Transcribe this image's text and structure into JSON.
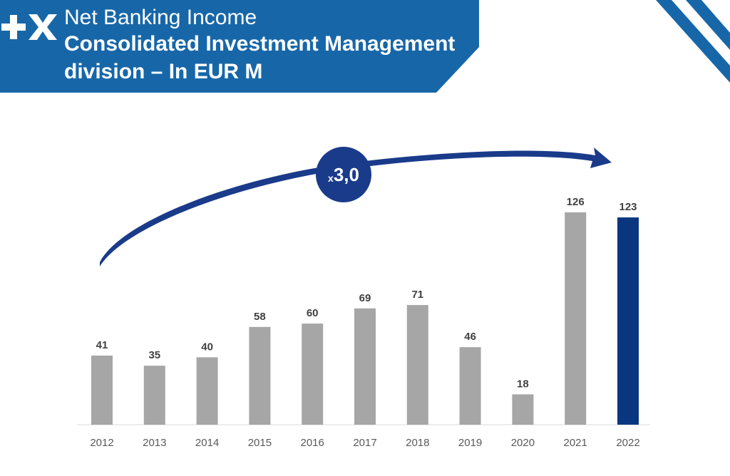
{
  "header": {
    "logo_icon": "plus-x-logo-icon",
    "title_line1": "Net Banking Income",
    "title_line2": "Consolidated Investment Management",
    "title_line3": "division – In EUR M"
  },
  "annotation": {
    "prefix": "x",
    "value": "3,0",
    "arrow_icon": "curved-arrow-icon"
  },
  "colors": {
    "banner": "#1767a8",
    "bar_default": "#a6a6a6",
    "bar_highlight": "#0a3680",
    "badge": "#1a3b8a"
  },
  "chart_data": {
    "type": "bar",
    "categories": [
      "2012",
      "2013",
      "2014",
      "2015",
      "2016",
      "2017",
      "2018",
      "2019",
      "2020",
      "2021",
      "2022"
    ],
    "values": [
      41,
      35,
      40,
      58,
      60,
      69,
      71,
      46,
      18,
      126,
      123
    ],
    "highlight_category": "2022",
    "title": "Net Banking Income Consolidated Investment Management division – In EUR M",
    "xlabel": "",
    "ylabel": "",
    "ylim": [
      0,
      126
    ],
    "grid": false,
    "legend": "none",
    "data_labels": true
  }
}
